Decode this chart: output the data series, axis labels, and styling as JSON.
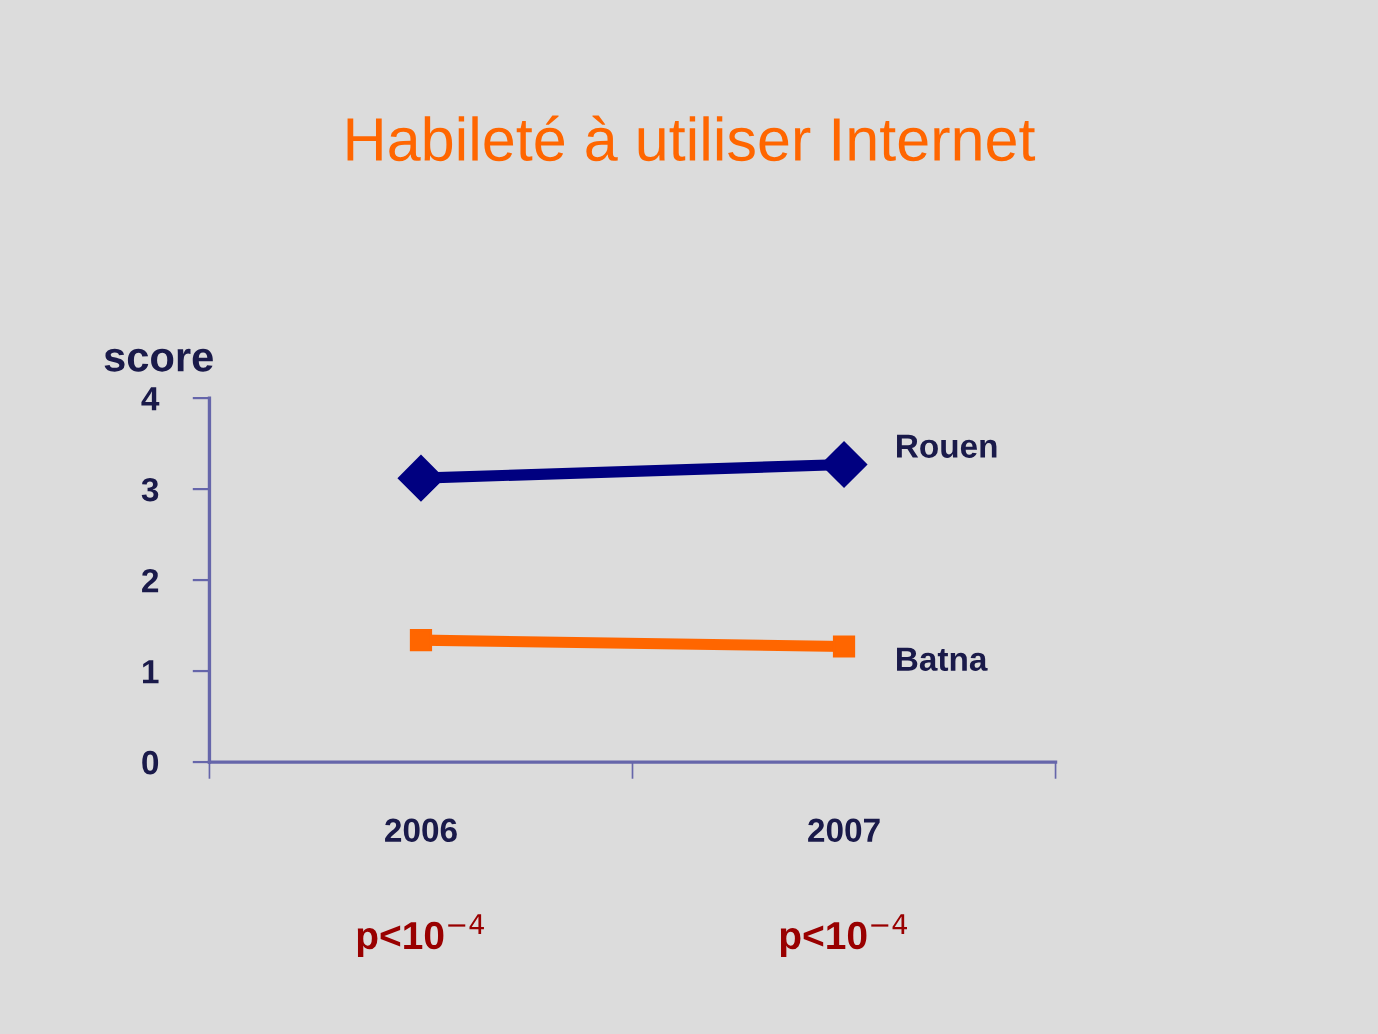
{
  "chart_data": {
    "type": "line",
    "title": "Habileté à utiliser Internet",
    "ylabel": "score",
    "categories": [
      "2006",
      "2007"
    ],
    "series": [
      {
        "name": "Rouen",
        "color": "#000080",
        "values": [
          3.12,
          3.27
        ],
        "marker": "diamond"
      },
      {
        "name": "Batna",
        "color": "#ff6600",
        "values": [
          1.34,
          1.27
        ],
        "marker": "square"
      }
    ],
    "ylim": [
      0,
      4
    ],
    "yticks": [
      0,
      1,
      2,
      3,
      4
    ],
    "grid": false,
    "legend": false,
    "line_style": "solid",
    "annotations": [
      "p<10$^{−4}$",
      "p<10$^{−4}$"
    ]
  }
}
